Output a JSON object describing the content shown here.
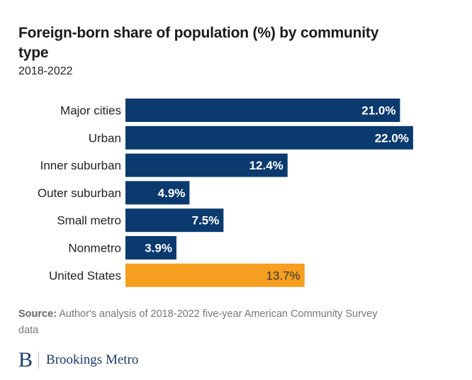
{
  "chart_data": {
    "type": "bar",
    "orientation": "horizontal",
    "title": "Foreign-born share of population (%) by community type",
    "subtitle": "2018-2022",
    "xlabel": "",
    "ylabel": "",
    "xlim": [
      0,
      22
    ],
    "grid": false,
    "categories": [
      "Major cities",
      "Urban",
      "Inner suburban",
      "Outer suburban",
      "Small metro",
      "Nonmetro",
      "United States"
    ],
    "values": [
      21.0,
      22.0,
      12.4,
      4.9,
      7.5,
      3.9,
      13.7
    ],
    "data_labels": [
      "21.0%",
      "22.0%",
      "12.4%",
      "4.9%",
      "7.5%",
      "3.9%",
      "13.7%"
    ],
    "colors": [
      "#0a3a6e",
      "#0a3a6e",
      "#0a3a6e",
      "#0a3a6e",
      "#0a3a6e",
      "#0a3a6e",
      "#f59e20"
    ],
    "label_colors": [
      "#ffffff",
      "#ffffff",
      "#ffffff",
      "#ffffff",
      "#ffffff",
      "#ffffff",
      "#333333"
    ]
  },
  "source": {
    "label": "Source:",
    "text": " Author's analysis of 2018-2022 five-year American Community Survey data"
  },
  "logo": {
    "mark": "B",
    "text": "Brookings Metro"
  }
}
